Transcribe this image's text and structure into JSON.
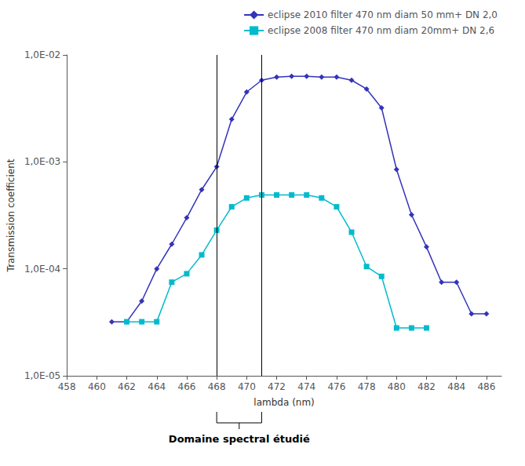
{
  "chart_data": {
    "type": "line",
    "xlabel": "lambda (nm)",
    "ylabel": "Transmission coefficient",
    "log": "y",
    "grid": false,
    "legend": "upper right",
    "background_color": "#ffffff",
    "series": [
      {
        "name": "eclipse 2010 filter 470 nm diam 50 mm+ DN 2,0",
        "color": "#3333bb",
        "marker": "diamond",
        "x": [
          461,
          462,
          463,
          464,
          465,
          466,
          467,
          468,
          469,
          470,
          471,
          472,
          473,
          474,
          475,
          476,
          477,
          478,
          479,
          480,
          481,
          482,
          483,
          484,
          485,
          486
        ],
        "values": [
          3.2e-05,
          3.2e-05,
          5e-05,
          0.0001,
          0.00017,
          0.0003,
          0.00055,
          0.0009,
          0.0025,
          0.0045,
          0.0058,
          0.0062,
          0.0063,
          0.0063,
          0.0062,
          0.0062,
          0.0058,
          0.0048,
          0.0032,
          0.00085,
          0.00032,
          0.00016,
          7.5e-05,
          7.5e-05,
          3.8e-05,
          3.8e-05
        ]
      },
      {
        "name": "eclipse 2008 filter 470 nm diam 20mm+ DN 2,6",
        "color": "#00bbcc",
        "marker": "square",
        "x": [
          462,
          463,
          464,
          465,
          466,
          467,
          468,
          469,
          470,
          471,
          472,
          473,
          474,
          475,
          476,
          477,
          478,
          479,
          480,
          481,
          482
        ],
        "values": [
          3.2e-05,
          3.2e-05,
          3.2e-05,
          7.5e-05,
          9e-05,
          0.000135,
          0.00023,
          0.00038,
          0.00046,
          0.00049,
          0.00049,
          0.00049,
          0.00049,
          0.00046,
          0.00038,
          0.00022,
          0.000105,
          8.5e-05,
          2.8e-05,
          2.8e-05,
          2.8e-05
        ]
      }
    ],
    "vlines": [
      468,
      471
    ],
    "annotations": [
      {
        "text": "Domaine spectral étudié",
        "x": 469.5
      }
    ],
    "xlim": [
      458,
      487
    ],
    "xticks": [
      458,
      460,
      462,
      464,
      466,
      468,
      470,
      472,
      474,
      476,
      478,
      480,
      482,
      484,
      486
    ],
    "ylim": [
      1e-05,
      0.01
    ],
    "yticks": [
      {
        "value": 1e-05,
        "label": "1,0E-05"
      },
      {
        "value": 0.0001,
        "label": "1,0E-04"
      },
      {
        "value": 0.001,
        "label": "1,0E-03"
      },
      {
        "value": 0.01,
        "label": "1,0E-02"
      }
    ]
  }
}
